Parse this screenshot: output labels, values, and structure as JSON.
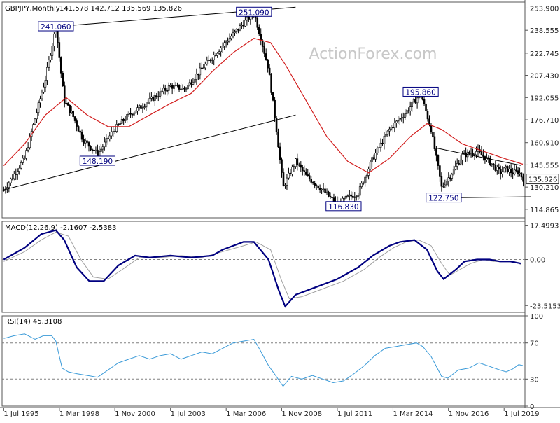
{
  "watermark": "ActionForex.com",
  "chart_data": [
    {
      "type": "candlestick",
      "title": "GBPJPY,Monthly",
      "ohlc_header": "141.578 142.712 135.569 135.826",
      "ylim": [
        109.0,
        258.0
      ],
      "y_ticks": [
        253.9,
        238.555,
        222.745,
        207.43,
        192.055,
        176.71,
        160.91,
        145.555,
        130.21,
        114.865
      ],
      "y_tick_labels": [
        "253.900",
        "238.555",
        "222.745",
        "207.430",
        "192.055",
        "176.710",
        "160.910",
        "145.555",
        "130.210",
        "114.865"
      ],
      "last_price": 135.826,
      "last_price_label": "135.826",
      "x_tick_labels": [
        "1 Jul 1995",
        "1 Mar 1998",
        "1 Nov 2000",
        "1 Jul 2003",
        "1 Mar 2006",
        "1 Nov 2008",
        "1 Jul 2011",
        "1 Mar 2014",
        "1 Nov 2016",
        "1 Jul 2019"
      ],
      "x_tick_times": [
        1995.5,
        1998.17,
        2000.83,
        2003.5,
        2006.17,
        2008.83,
        2011.5,
        2014.17,
        2016.83,
        2019.5
      ],
      "xlim": [
        1995.42,
        2020.5
      ],
      "annotations": [
        {
          "text": "241.060",
          "t": 1998.0,
          "v": 241.06
        },
        {
          "text": "251.090",
          "t": 2007.5,
          "v": 251.09
        },
        {
          "text": "148.190",
          "t": 2000.0,
          "v": 148.19
        },
        {
          "text": "116.830",
          "t": 2011.8,
          "v": 116.83
        },
        {
          "text": "195.860",
          "t": 2015.5,
          "v": 195.86
        },
        {
          "text": "122.750",
          "t": 2016.6,
          "v": 122.75
        }
      ],
      "trendlines": [
        {
          "t1": 1998.0,
          "v1": 241.06,
          "t2": 2009.5,
          "v2": 254.5
        },
        {
          "t1": 1995.42,
          "v1": 128.0,
          "t2": 2009.5,
          "v2": 180.0
        },
        {
          "t1": 2016.3,
          "v1": 157.0,
          "t2": 2020.3,
          "v2": 145.2
        },
        {
          "t1": 2016.3,
          "v1": 122.7,
          "t2": 2020.8,
          "v2": 123.5
        }
      ],
      "price_path": [
        [
          1995.5,
          128
        ],
        [
          1996.5,
          150
        ],
        [
          1997.5,
          205
        ],
        [
          1998.0,
          241
        ],
        [
          1998.4,
          190
        ],
        [
          1998.8,
          180
        ],
        [
          1999.3,
          163
        ],
        [
          2000.0,
          153
        ],
        [
          2000.8,
          170
        ],
        [
          2001.5,
          180
        ],
        [
          2002.5,
          190
        ],
        [
          2003.5,
          200
        ],
        [
          2004.2,
          198
        ],
        [
          2005.0,
          212
        ],
        [
          2006.0,
          228
        ],
        [
          2007.3,
          248
        ],
        [
          2007.5,
          251
        ],
        [
          2007.8,
          235
        ],
        [
          2008.2,
          212
        ],
        [
          2008.6,
          168
        ],
        [
          2008.9,
          130
        ],
        [
          2009.5,
          148
        ],
        [
          2010.0,
          138
        ],
        [
          2010.8,
          128
        ],
        [
          2011.5,
          118
        ],
        [
          2012.0,
          123
        ],
        [
          2012.5,
          126
        ],
        [
          2013.2,
          150
        ],
        [
          2014.0,
          170
        ],
        [
          2014.8,
          182
        ],
        [
          2015.5,
          195
        ],
        [
          2016.0,
          170
        ],
        [
          2016.5,
          130
        ],
        [
          2017.0,
          140
        ],
        [
          2017.5,
          152
        ],
        [
          2018.2,
          155
        ],
        [
          2018.8,
          148
        ],
        [
          2019.3,
          140
        ],
        [
          2019.6,
          143
        ],
        [
          2019.9,
          140
        ],
        [
          2020.2,
          141
        ],
        [
          2020.4,
          136
        ]
      ],
      "ma_path": [
        [
          1995.5,
          145
        ],
        [
          1996.5,
          160
        ],
        [
          1997.5,
          180
        ],
        [
          1998.5,
          192
        ],
        [
          1999.5,
          180
        ],
        [
          2000.5,
          172
        ],
        [
          2001.5,
          172
        ],
        [
          2002.5,
          180
        ],
        [
          2003.5,
          188
        ],
        [
          2004.5,
          195
        ],
        [
          2005.5,
          210
        ],
        [
          2006.5,
          223
        ],
        [
          2007.5,
          233
        ],
        [
          2008.3,
          230
        ],
        [
          2009.0,
          215
        ],
        [
          2010.0,
          190
        ],
        [
          2011.0,
          165
        ],
        [
          2012.0,
          148
        ],
        [
          2013.0,
          140
        ],
        [
          2014.0,
          150
        ],
        [
          2015.0,
          165
        ],
        [
          2015.8,
          174
        ],
        [
          2016.5,
          170
        ],
        [
          2017.5,
          160
        ],
        [
          2018.5,
          155
        ],
        [
          2019.5,
          150
        ],
        [
          2020.4,
          146
        ]
      ]
    },
    {
      "type": "line",
      "title": "MACD(12,26,9) -2.1607 -2.5383",
      "ylim": [
        -27.0,
        19.5
      ],
      "y_ticks": [
        17.4993,
        0.0,
        -23.5153
      ],
      "y_tick_labels": [
        "17.4993",
        "0.00",
        "-23.5153"
      ],
      "reference_lines": [
        0.0
      ],
      "series": [
        {
          "role": "macd",
          "color": "#000080",
          "values": [
            [
              1995.5,
              0
            ],
            [
              1996.5,
              6
            ],
            [
              1997.3,
              13
            ],
            [
              1998.0,
              15
            ],
            [
              1998.4,
              10
            ],
            [
              1999.0,
              -4
            ],
            [
              1999.6,
              -11
            ],
            [
              2000.3,
              -11
            ],
            [
              2001.0,
              -3
            ],
            [
              2001.8,
              2
            ],
            [
              2002.5,
              1
            ],
            [
              2003.5,
              2
            ],
            [
              2004.5,
              1
            ],
            [
              2005.5,
              2
            ],
            [
              2006.0,
              5
            ],
            [
              2007.0,
              9
            ],
            [
              2007.5,
              9
            ],
            [
              2008.2,
              0
            ],
            [
              2008.7,
              -16
            ],
            [
              2009.0,
              -24
            ],
            [
              2009.5,
              -18
            ],
            [
              2010.5,
              -14
            ],
            [
              2011.5,
              -10
            ],
            [
              2012.5,
              -4
            ],
            [
              2013.2,
              2
            ],
            [
              2014.0,
              7
            ],
            [
              2014.5,
              9
            ],
            [
              2015.2,
              10
            ],
            [
              2015.8,
              5
            ],
            [
              2016.3,
              -6
            ],
            [
              2016.6,
              -10
            ],
            [
              2017.2,
              -5
            ],
            [
              2017.6,
              -1
            ],
            [
              2018.2,
              0
            ],
            [
              2018.8,
              0
            ],
            [
              2019.3,
              -1
            ],
            [
              2019.8,
              -1
            ],
            [
              2020.3,
              -2
            ]
          ]
        },
        {
          "role": "signal",
          "color": "#a0a0a0",
          "values": [
            [
              1995.5,
              -1
            ],
            [
              1996.5,
              4
            ],
            [
              1997.3,
              10
            ],
            [
              1998.0,
              14
            ],
            [
              1998.6,
              12
            ],
            [
              1999.2,
              0
            ],
            [
              1999.8,
              -9
            ],
            [
              2000.5,
              -10
            ],
            [
              2001.2,
              -5
            ],
            [
              2002.0,
              1
            ],
            [
              2003.0,
              1
            ],
            [
              2004.0,
              2
            ],
            [
              2005.0,
              1
            ],
            [
              2006.0,
              4
            ],
            [
              2007.0,
              7
            ],
            [
              2007.6,
              9
            ],
            [
              2008.3,
              5
            ],
            [
              2008.8,
              -10
            ],
            [
              2009.2,
              -20
            ],
            [
              2009.8,
              -19
            ],
            [
              2010.8,
              -15
            ],
            [
              2011.8,
              -11
            ],
            [
              2012.8,
              -5
            ],
            [
              2013.5,
              1
            ],
            [
              2014.2,
              6
            ],
            [
              2014.8,
              9
            ],
            [
              2015.4,
              10
            ],
            [
              2016.0,
              7
            ],
            [
              2016.5,
              -2
            ],
            [
              2016.9,
              -8
            ],
            [
              2017.4,
              -5
            ],
            [
              2017.9,
              -2
            ],
            [
              2018.5,
              0
            ],
            [
              2019.0,
              -1
            ],
            [
              2019.5,
              -1
            ],
            [
              2020.0,
              -1
            ],
            [
              2020.3,
              -2.5
            ]
          ]
        }
      ]
    },
    {
      "type": "line",
      "title": "RSI(14) 45.3108",
      "ylim": [
        0,
        100
      ],
      "y_ticks": [
        100,
        70,
        30,
        0
      ],
      "y_tick_labels": [
        "100",
        "70",
        "30",
        "0"
      ],
      "reference_lines": [
        70,
        30
      ],
      "series": [
        {
          "role": "rsi",
          "color": "#3a9ad8",
          "values": [
            [
              1995.5,
              75
            ],
            [
              1996.0,
              78
            ],
            [
              1996.5,
              80
            ],
            [
              1997.0,
              74
            ],
            [
              1997.4,
              78
            ],
            [
              1997.8,
              78
            ],
            [
              1998.0,
              72
            ],
            [
              1998.3,
              42
            ],
            [
              1998.6,
              38
            ],
            [
              1999.0,
              36
            ],
            [
              1999.5,
              34
            ],
            [
              2000.0,
              32
            ],
            [
              2000.5,
              40
            ],
            [
              2001.0,
              48
            ],
            [
              2001.5,
              52
            ],
            [
              2002.0,
              56
            ],
            [
              2002.5,
              52
            ],
            [
              2003.0,
              56
            ],
            [
              2003.5,
              58
            ],
            [
              2004.0,
              52
            ],
            [
              2004.5,
              56
            ],
            [
              2005.0,
              60
            ],
            [
              2005.5,
              58
            ],
            [
              2006.0,
              64
            ],
            [
              2006.5,
              70
            ],
            [
              2007.0,
              72
            ],
            [
              2007.5,
              74
            ],
            [
              2007.8,
              62
            ],
            [
              2008.2,
              45
            ],
            [
              2008.6,
              32
            ],
            [
              2008.9,
              22
            ],
            [
              2009.3,
              33
            ],
            [
              2009.8,
              30
            ],
            [
              2010.3,
              34
            ],
            [
              2010.8,
              30
            ],
            [
              2011.3,
              26
            ],
            [
              2011.8,
              28
            ],
            [
              2012.3,
              36
            ],
            [
              2012.8,
              45
            ],
            [
              2013.3,
              56
            ],
            [
              2013.8,
              64
            ],
            [
              2014.3,
              66
            ],
            [
              2014.8,
              68
            ],
            [
              2015.3,
              70
            ],
            [
              2015.6,
              66
            ],
            [
              2016.0,
              55
            ],
            [
              2016.5,
              33
            ],
            [
              2016.8,
              31
            ],
            [
              2017.3,
              40
            ],
            [
              2017.8,
              42
            ],
            [
              2018.3,
              48
            ],
            [
              2018.8,
              44
            ],
            [
              2019.3,
              40
            ],
            [
              2019.6,
              38
            ],
            [
              2019.9,
              41
            ],
            [
              2020.2,
              46
            ],
            [
              2020.4,
              45
            ]
          ]
        }
      ]
    }
  ]
}
